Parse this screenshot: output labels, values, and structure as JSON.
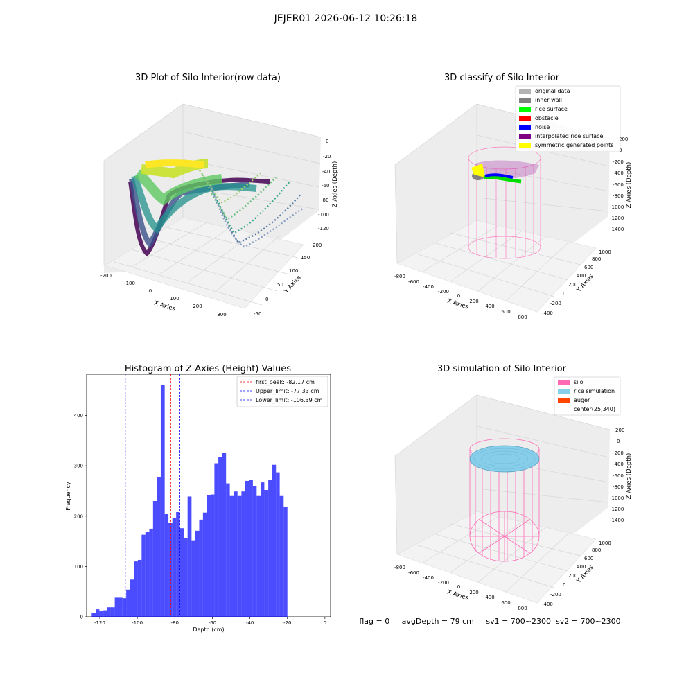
{
  "suptitle": "JEJER01 2026-06-12 10:26:18",
  "panels": {
    "raw": {
      "title": "3D Plot of Silo Interior(row data)",
      "xlabel": "X Axies",
      "ylabel": "Y Axies",
      "zlabel": "Z Axies (Depth)",
      "xticks": [
        "-200",
        "-100",
        "0",
        "100",
        "200",
        "300"
      ],
      "yticks": [
        "-50",
        "0",
        "50",
        "100",
        "150",
        "200"
      ],
      "zticks": [
        "0",
        "-20",
        "-40",
        "-60",
        "-80",
        "-100",
        "-120"
      ]
    },
    "classify": {
      "title": "3D classify of Silo Interior",
      "xlabel": "X Axies",
      "ylabel": "Y Axies",
      "zlabel": "Z Axies (Depth)",
      "xticks": [
        "-800",
        "-600",
        "-400",
        "-200",
        "0",
        "200",
        "400",
        "600",
        "800"
      ],
      "yticks": [
        "-400",
        "-200",
        "0",
        "200",
        "400",
        "600",
        "800",
        "1000"
      ],
      "zticks": [
        "200",
        "0",
        "-200",
        "-400",
        "-600",
        "-800",
        "-1000",
        "-1200",
        "-1400"
      ],
      "legend": [
        {
          "label": "original data",
          "color": "#b3b3b3"
        },
        {
          "label": "inner wall",
          "color": "#808080"
        },
        {
          "label": "rice surface",
          "color": "#00ff00"
        },
        {
          "label": "obstacle",
          "color": "#ff0000"
        },
        {
          "label": "noise",
          "color": "#0000ff"
        },
        {
          "label": "interpolated rice surface",
          "color": "#800080"
        },
        {
          "label": "symmetric generated points",
          "color": "#ffff00"
        }
      ]
    },
    "simulation": {
      "title": "3D simulation of Silo Interior",
      "xlabel": "X Axies",
      "ylabel": "Y Axies",
      "zlabel": "Z Axies (Depth)",
      "xticks": [
        "-800",
        "-600",
        "-400",
        "-200",
        "0",
        "200",
        "400",
        "600",
        "800"
      ],
      "yticks": [
        "-400",
        "-200",
        "0",
        "200",
        "400",
        "600",
        "800",
        "1000"
      ],
      "zticks": [
        "200",
        "0",
        "-200",
        "-400",
        "-600",
        "-800",
        "-1000",
        "-1200",
        "-1400"
      ],
      "legend": [
        {
          "label": "silo",
          "color": "#ff69b4"
        },
        {
          "label": "rice simulation",
          "color": "#87ceeb"
        },
        {
          "label": "auger",
          "color": "#ff4500"
        },
        {
          "label": "center(25,340)",
          "color": ""
        }
      ]
    }
  },
  "status_text": "flag = 0     avgDepth = 79 cm     sv1 = 700~2300  sv2 = 700~2300",
  "chart_data": [
    {
      "type": "histogram",
      "title": "Histogram of Z-Axies (Height) Values",
      "xlabel": "Depth (cm)",
      "ylabel": "Frequency",
      "xlim": [
        -127,
        3
      ],
      "ylim": [
        0,
        482
      ],
      "xticks": [
        -120,
        -100,
        -80,
        -60,
        -40,
        -20,
        0
      ],
      "yticks": [
        0,
        100,
        200,
        300,
        400
      ],
      "bar_color": "#0000ff",
      "bins": [
        {
          "x0": -124.3,
          "x1": -122.2,
          "value": 7
        },
        {
          "x0": -122.2,
          "x1": -120.2,
          "value": 15
        },
        {
          "x0": -120.2,
          "x1": -118.1,
          "value": 11
        },
        {
          "x0": -118.1,
          "x1": -116.1,
          "value": 13
        },
        {
          "x0": -116.1,
          "x1": -114.1,
          "value": 19
        },
        {
          "x0": -114.1,
          "x1": -112.0,
          "value": 19
        },
        {
          "x0": -112.0,
          "x1": -110.0,
          "value": 38
        },
        {
          "x0": -110.0,
          "x1": -107.9,
          "value": 38
        },
        {
          "x0": -107.9,
          "x1": -105.9,
          "value": 37
        },
        {
          "x0": -105.9,
          "x1": -103.8,
          "value": 54
        },
        {
          "x0": -103.8,
          "x1": -101.8,
          "value": 74
        },
        {
          "x0": -101.8,
          "x1": -99.7,
          "value": 110
        },
        {
          "x0": -99.7,
          "x1": -97.7,
          "value": 113
        },
        {
          "x0": -97.7,
          "x1": -95.7,
          "value": 163
        },
        {
          "x0": -95.7,
          "x1": -93.6,
          "value": 168
        },
        {
          "x0": -93.6,
          "x1": -91.6,
          "value": 175
        },
        {
          "x0": -91.6,
          "x1": -89.5,
          "value": 230
        },
        {
          "x0": -89.5,
          "x1": -87.5,
          "value": 278
        },
        {
          "x0": -87.5,
          "x1": -85.4,
          "value": 460
        },
        {
          "x0": -85.4,
          "x1": -83.4,
          "value": 204
        },
        {
          "x0": -83.4,
          "x1": -81.3,
          "value": 186
        },
        {
          "x0": -81.3,
          "x1": -79.3,
          "value": 197
        },
        {
          "x0": -79.3,
          "x1": -77.3,
          "value": 208
        },
        {
          "x0": -77.3,
          "x1": -75.2,
          "value": 176
        },
        {
          "x0": -75.2,
          "x1": -73.2,
          "value": 156
        },
        {
          "x0": -73.2,
          "x1": -71.1,
          "value": 239
        },
        {
          "x0": -71.1,
          "x1": -69.1,
          "value": 152
        },
        {
          "x0": -69.1,
          "x1": -67.0,
          "value": 171
        },
        {
          "x0": -67.0,
          "x1": -65.0,
          "value": 193
        },
        {
          "x0": -65.0,
          "x1": -62.9,
          "value": 207
        },
        {
          "x0": -62.9,
          "x1": -60.9,
          "value": 242
        },
        {
          "x0": -60.9,
          "x1": -58.9,
          "value": 243
        },
        {
          "x0": -58.9,
          "x1": -56.8,
          "value": 305
        },
        {
          "x0": -56.8,
          "x1": -54.8,
          "value": 317
        },
        {
          "x0": -54.8,
          "x1": -52.7,
          "value": 326
        },
        {
          "x0": -52.7,
          "x1": -50.7,
          "value": 265
        },
        {
          "x0": -50.7,
          "x1": -48.6,
          "value": 240
        },
        {
          "x0": -48.6,
          "x1": -46.6,
          "value": 249
        },
        {
          "x0": -46.6,
          "x1": -44.5,
          "value": 240
        },
        {
          "x0": -44.5,
          "x1": -42.5,
          "value": 249
        },
        {
          "x0": -42.5,
          "x1": -40.5,
          "value": 270
        },
        {
          "x0": -40.5,
          "x1": -38.4,
          "value": 272
        },
        {
          "x0": -38.4,
          "x1": -36.4,
          "value": 259
        },
        {
          "x0": -36.4,
          "x1": -34.3,
          "value": 240
        },
        {
          "x0": -34.3,
          "x1": -32.3,
          "value": 267
        },
        {
          "x0": -32.3,
          "x1": -30.2,
          "value": 252
        },
        {
          "x0": -30.2,
          "x1": -28.2,
          "value": 272
        },
        {
          "x0": -28.2,
          "x1": -26.1,
          "value": 302
        },
        {
          "x0": -26.1,
          "x1": -24.1,
          "value": 287
        },
        {
          "x0": -24.1,
          "x1": -22.0,
          "value": 240
        },
        {
          "x0": -22.0,
          "x1": -20.0,
          "value": 219
        }
      ],
      "vlines": [
        {
          "x": -82.17,
          "color": "#ff0000",
          "label": "first_peak: -82.17 cm"
        },
        {
          "x": -77.33,
          "color": "#0000ff",
          "label": "Upper_limit: -77.33 cm"
        },
        {
          "x": -106.39,
          "color": "#0000ff",
          "label": "Lower_limit: -106.39 cm"
        }
      ],
      "legend_position": "upper right"
    }
  ]
}
